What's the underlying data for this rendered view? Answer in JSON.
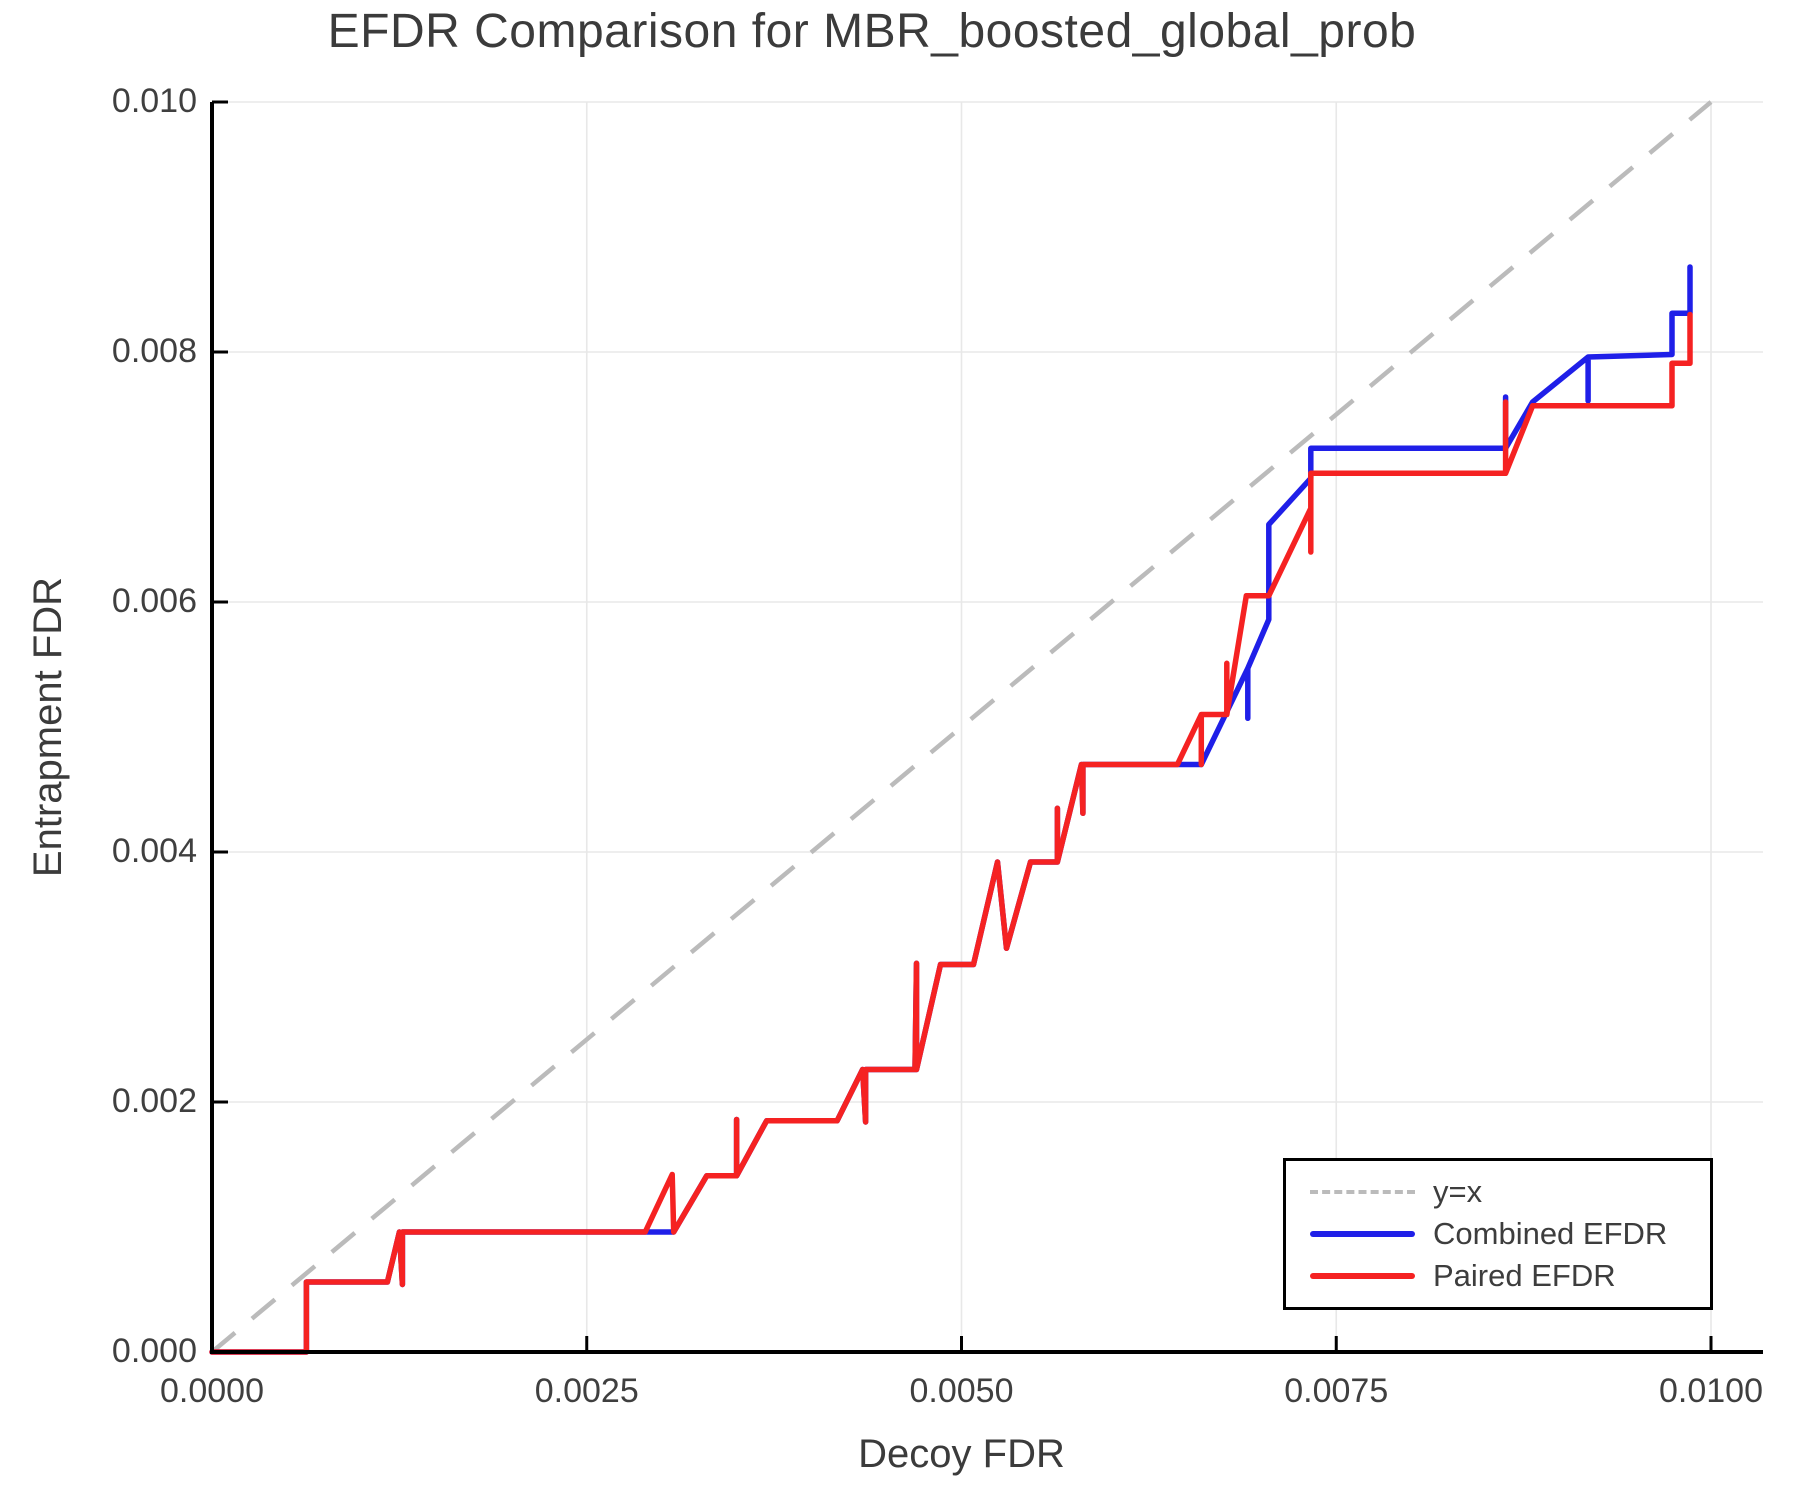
{
  "figure": {
    "title": "EFDR Comparison for MBR_boosted_global_prob",
    "xlabel": "Decoy FDR",
    "ylabel": "Entrapment FDR"
  },
  "legend": {
    "position": "lower right",
    "items": [
      {
        "label": "y=x",
        "color": "#bbbbbb",
        "style": "dashed"
      },
      {
        "label": "Combined EFDR",
        "color": "#1f1fe8",
        "style": "solid"
      },
      {
        "label": "Paired EFDR",
        "color": "#f52222",
        "style": "solid"
      }
    ]
  },
  "colors": {
    "grid": "#e8e8e8",
    "axis": "#000000",
    "text": "#3d3d3d",
    "identity": "#bbbbbb",
    "combined": "#1f1fe8",
    "paired": "#f52222"
  },
  "chart_data": {
    "type": "line",
    "title": "EFDR Comparison for MBR_boosted_global_prob",
    "xlabel": "Decoy FDR",
    "ylabel": "Entrapment FDR",
    "xlim": [
      0.0,
      0.01035
    ],
    "ylim": [
      0.0,
      0.01
    ],
    "grid": true,
    "legend_position": "lower right",
    "x_ticks": {
      "values": [
        0.0,
        0.0025,
        0.005,
        0.0075,
        0.01
      ],
      "labels": [
        "0.0000",
        "0.0025",
        "0.0050",
        "0.0075",
        "0.0100"
      ]
    },
    "y_ticks": {
      "values": [
        0.0,
        0.002,
        0.004,
        0.006,
        0.008,
        0.01
      ],
      "labels": [
        "0.000",
        "0.002",
        "0.004",
        "0.006",
        "0.008",
        "0.010"
      ]
    },
    "series": [
      {
        "name": "y=x",
        "style": "dashed",
        "points": [
          [
            0.0,
            0.0
          ],
          [
            0.01,
            0.01
          ]
        ]
      },
      {
        "name": "Combined EFDR",
        "style": "solid",
        "points": [
          [
            0.0,
            0.0
          ],
          [
            0.00063,
            0.0
          ],
          [
            0.00063,
            0.00056
          ],
          [
            0.00117,
            0.00056
          ],
          [
            0.00125,
            0.00096
          ],
          [
            0.00127,
            0.00054
          ],
          [
            0.00127,
            0.00096
          ],
          [
            0.00308,
            0.00096
          ],
          [
            0.0033,
            0.00141
          ],
          [
            0.0035,
            0.00141
          ],
          [
            0.0035,
            0.00186
          ],
          [
            0.0035,
            0.00141
          ],
          [
            0.0037,
            0.00185
          ],
          [
            0.00417,
            0.00185
          ],
          [
            0.00434,
            0.00226
          ],
          [
            0.00436,
            0.00184
          ],
          [
            0.00436,
            0.00226
          ],
          [
            0.00469,
            0.00226
          ],
          [
            0.0047,
            0.00311
          ],
          [
            0.0047,
            0.00226
          ],
          [
            0.00486,
            0.0031
          ],
          [
            0.00508,
            0.0031
          ],
          [
            0.00524,
            0.00392
          ],
          [
            0.0053,
            0.00323
          ],
          [
            0.00546,
            0.00392
          ],
          [
            0.00564,
            0.00392
          ],
          [
            0.00564,
            0.00435
          ],
          [
            0.00564,
            0.00392
          ],
          [
            0.0058,
            0.0047
          ],
          [
            0.00581,
            0.00431
          ],
          [
            0.00581,
            0.0047
          ],
          [
            0.0066,
            0.0047
          ],
          [
            0.00691,
            0.00547
          ],
          [
            0.00691,
            0.00507
          ],
          [
            0.00691,
            0.00547
          ],
          [
            0.00705,
            0.00586
          ],
          [
            0.00705,
            0.00662
          ],
          [
            0.00733,
            0.00699
          ],
          [
            0.00733,
            0.00723
          ],
          [
            0.00863,
            0.00723
          ],
          [
            0.00863,
            0.00764
          ],
          [
            0.00863,
            0.00723
          ],
          [
            0.00881,
            0.0076
          ],
          [
            0.00918,
            0.00796
          ],
          [
            0.00918,
            0.00761
          ],
          [
            0.00918,
            0.00796
          ],
          [
            0.00974,
            0.00798
          ],
          [
            0.00974,
            0.00831
          ],
          [
            0.00986,
            0.00831
          ],
          [
            0.00986,
            0.00868
          ]
        ]
      },
      {
        "name": "Paired EFDR",
        "style": "solid",
        "points": [
          [
            0.0,
            0.0
          ],
          [
            0.00063,
            0.0
          ],
          [
            0.00063,
            0.00056
          ],
          [
            0.00117,
            0.00056
          ],
          [
            0.00125,
            0.00096
          ],
          [
            0.00127,
            0.00054
          ],
          [
            0.00127,
            0.00096
          ],
          [
            0.00289,
            0.00096
          ],
          [
            0.00307,
            0.00142
          ],
          [
            0.00308,
            0.00096
          ],
          [
            0.0033,
            0.00141
          ],
          [
            0.0035,
            0.00141
          ],
          [
            0.0035,
            0.00186
          ],
          [
            0.0035,
            0.00141
          ],
          [
            0.0037,
            0.00185
          ],
          [
            0.00417,
            0.00185
          ],
          [
            0.00434,
            0.00226
          ],
          [
            0.00436,
            0.00184
          ],
          [
            0.00436,
            0.00226
          ],
          [
            0.00469,
            0.00226
          ],
          [
            0.0047,
            0.00311
          ],
          [
            0.0047,
            0.00226
          ],
          [
            0.00486,
            0.0031
          ],
          [
            0.00508,
            0.0031
          ],
          [
            0.00524,
            0.00392
          ],
          [
            0.0053,
            0.00323
          ],
          [
            0.00546,
            0.00392
          ],
          [
            0.00564,
            0.00392
          ],
          [
            0.00564,
            0.00435
          ],
          [
            0.00564,
            0.00392
          ],
          [
            0.0058,
            0.0047
          ],
          [
            0.00581,
            0.00431
          ],
          [
            0.00581,
            0.0047
          ],
          [
            0.00644,
            0.0047
          ],
          [
            0.0066,
            0.0051
          ],
          [
            0.0066,
            0.0047
          ],
          [
            0.0066,
            0.0051
          ],
          [
            0.00677,
            0.0051
          ],
          [
            0.00677,
            0.00551
          ],
          [
            0.00677,
            0.0051
          ],
          [
            0.0069,
            0.00605
          ],
          [
            0.00705,
            0.00605
          ],
          [
            0.00733,
            0.00675
          ],
          [
            0.00733,
            0.00703
          ],
          [
            0.00733,
            0.0064
          ],
          [
            0.00733,
            0.00703
          ],
          [
            0.00863,
            0.00703
          ],
          [
            0.00863,
            0.0076
          ],
          [
            0.00863,
            0.00703
          ],
          [
            0.00881,
            0.00757
          ],
          [
            0.00974,
            0.00757
          ],
          [
            0.00974,
            0.00791
          ],
          [
            0.00986,
            0.00791
          ],
          [
            0.00986,
            0.0083
          ]
        ]
      }
    ]
  }
}
